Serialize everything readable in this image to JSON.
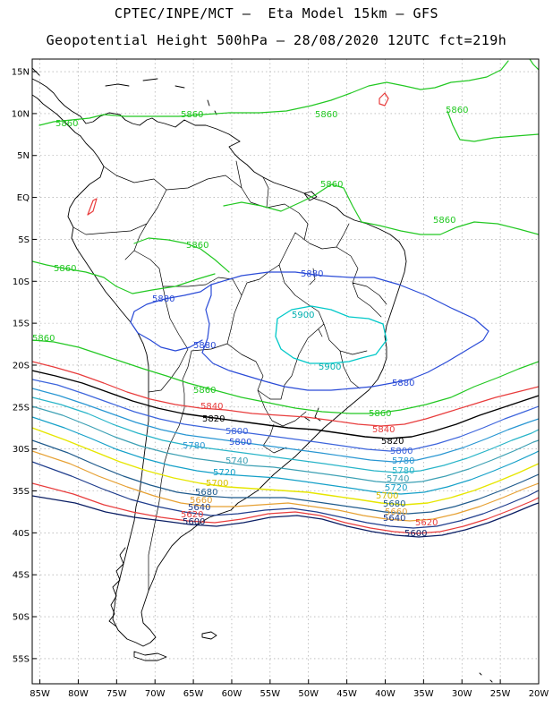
{
  "header": {
    "line1": "CPTEC/INPE/MCT –  Eta Model 15km – GFS",
    "line2": "Geopotential Height 500hPa – 28/08/2020 12UTC fct=219h"
  },
  "axes": {
    "lat_labels": [
      "15N",
      "10N",
      "5N",
      "EQ",
      "5S",
      "10S",
      "15S",
      "20S",
      "25S",
      "30S",
      "35S",
      "40S",
      "45S",
      "50S",
      "55S"
    ],
    "lon_labels": [
      "85W",
      "80W",
      "75W",
      "70W",
      "65W",
      "60W",
      "55W",
      "50W",
      "45W",
      "40W",
      "35W",
      "30W",
      "25W",
      "20W"
    ],
    "lat_values": [
      15,
      10,
      5,
      0,
      -5,
      -10,
      -15,
      -20,
      -25,
      -30,
      -35,
      -40,
      -45,
      -50,
      -55
    ],
    "lon_values": [
      -85,
      -80,
      -75,
      -70,
      -65,
      -60,
      -55,
      -50,
      -45,
      -40,
      -35,
      -30,
      -25,
      -20
    ],
    "lat_range": [
      -58,
      16.5
    ],
    "lon_range": [
      -86,
      -20
    ],
    "grid": true
  },
  "colors": {
    "c5900": "#00c8c8",
    "c5880": "#2a4bd7",
    "c5860": "#22c822",
    "c5840": "#e83c3c",
    "c5820": "#000000",
    "c5800": "#3c64dc",
    "c5780": "#2896d2",
    "c5760": "#28b4c8",
    "c5740": "#3ca0b4",
    "c5720": "#14a0c8",
    "c5700": "#e6e600",
    "c5680": "#1e5a8c",
    "c5660": "#e6a032",
    "c5640": "#1e3c8c",
    "c5620": "#e83c3c",
    "c5600": "#0a1e64",
    "coast": "#000000",
    "grid": "#9a9a9a"
  },
  "contour_labels": {
    "l5860a": "5860",
    "l5860b": "5860",
    "l5860c": "5860",
    "l5860d": "5860",
    "l5860e": "5860",
    "l5860f": "5860",
    "l5860g": "5860",
    "l5860h": "5860",
    "l5860i": "5860",
    "l5860j": "5860",
    "l5860k": "5860",
    "l5880a": "5880",
    "l5880b": "5880",
    "l5880c": "5880",
    "l5880d": "5880",
    "l5900a": "5900",
    "l5900b": "5900",
    "l5840a": "5840",
    "l5840b": "5840",
    "l5840c": "5840",
    "l5820a": "5820",
    "l5820b": "5820",
    "l5800a": "5800",
    "l5800b": "5800",
    "l5800c": "5800",
    "l5780a": "5780",
    "l5780b": "5780",
    "l5780c": "5780",
    "l5760a": "5760",
    "l5760b": "5760",
    "l5740a": "5740",
    "l5740b": "5740",
    "l5720a": "5720",
    "l5720b": "5720",
    "l5700a": "5700",
    "l5700b": "5700",
    "l5680a": "5680",
    "l5680b": "5680",
    "l5660a": "5660",
    "l5660b": "5660",
    "l5640a": "5640",
    "l5640b": "5640",
    "l5620a": "5620",
    "l5620b": "5620",
    "l5600a": "5600",
    "l5600b": "5600"
  }
}
